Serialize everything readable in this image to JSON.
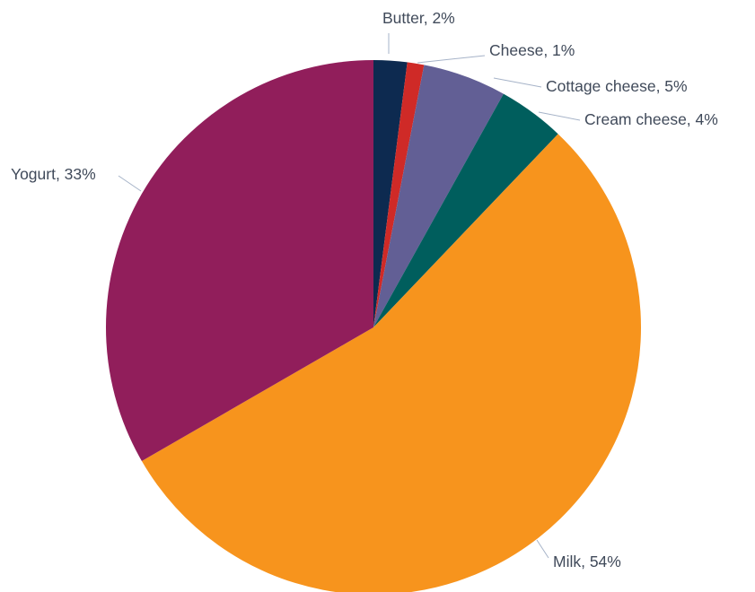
{
  "chart_data": {
    "type": "pie",
    "title": "",
    "start_angle_deg": 0,
    "direction": "clockwise",
    "slices": [
      {
        "name": "Butter",
        "value": 2,
        "label": "Butter, 2%",
        "color": "#0d2a50"
      },
      {
        "name": "Cheese",
        "value": 1,
        "label": "Cheese, 1%",
        "color": "#cf2a27"
      },
      {
        "name": "Cottage cheese",
        "value": 5,
        "label": "Cottage cheese, 5%",
        "color": "#625f95"
      },
      {
        "name": "Cream cheese",
        "value": 4,
        "label": "Cream cheese, 4%",
        "color": "#005e5d"
      },
      {
        "name": "Milk",
        "value": 54,
        "label": "Milk, 54%",
        "color": "#f7941d"
      },
      {
        "name": "Yogurt",
        "value": 33,
        "label": "Yogurt, 33%",
        "color": "#911e5b"
      }
    ]
  }
}
